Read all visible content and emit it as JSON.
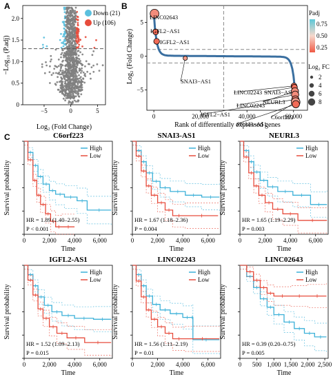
{
  "figure": {
    "panel_a": "A",
    "panel_b": "B",
    "panel_c": "C"
  },
  "colors": {
    "down": "#5bc0de",
    "up": "#e74c3c",
    "ns": "#808080",
    "high": "#3bb0d8",
    "low": "#e74c3c"
  },
  "chart_data": [
    {
      "id": "volcano",
      "type": "scatter",
      "title": "",
      "xlabel": "Log₂ (Fold Change)",
      "ylabel": "−Log₁₀ (P.adj)",
      "xlim": [
        -9,
        6.5
      ],
      "ylim": [
        0,
        2.3
      ],
      "xticks": [
        -5,
        0,
        5
      ],
      "xtick_labels": [
        "−5",
        "0",
        "5"
      ],
      "yticks": [
        0,
        0.5,
        1.0,
        1.5,
        2.0
      ],
      "ytick_labels": [
        "0",
        "0.5",
        "1.0",
        "1.5",
        "2.0"
      ],
      "thresholds": {
        "padj_line": 1.3,
        "fc_lines": [
          -1,
          1
        ]
      },
      "legend": [
        {
          "label": "Down (21)",
          "color": "down"
        },
        {
          "label": "Up (106)",
          "color": "up"
        }
      ],
      "grid": false
    },
    {
      "id": "rank",
      "type": "scatter",
      "title": "",
      "xlabel": "Rank of differentially expressed genes",
      "ylabel": "Log₂ (Fold Change)",
      "xlim": [
        -3000,
        66000
      ],
      "ylim": [
        -8,
        7.5
      ],
      "xticks": [
        0,
        20000,
        40000,
        60000
      ],
      "xtick_labels": [
        "0",
        "20,000",
        "40,000",
        "60,000"
      ],
      "yticks": [
        -5,
        0,
        5
      ],
      "ytick_labels": [
        "−5",
        "0",
        "5"
      ],
      "hlines": [
        1,
        -1
      ],
      "vline": 30000,
      "labeled_genes": [
        {
          "gene": "LINC02643",
          "rank": 300,
          "log2fc": 6.3,
          "padj": 0.15,
          "size": 8
        },
        {
          "gene": "IGFL2−AS1",
          "rank": 800,
          "log2fc": 3.6,
          "padj": 0.05,
          "size": 4
        },
        {
          "gene": "IGFL2−AS1",
          "rank": 1200,
          "log2fc": 2.2,
          "padj": 0.05,
          "size": 4
        },
        {
          "gene": "SNAI3−AS1",
          "rank": 13500,
          "log2fc": -0.3,
          "padj": 0.2,
          "size": 2
        },
        {
          "gene": "LINC02243",
          "rank": 60200,
          "log2fc": -4.4,
          "padj": 0.05,
          "size": 4
        },
        {
          "gene": "SNAI3−AS1",
          "rank": 60400,
          "log2fc": -4.6,
          "padj": 0.06,
          "size": 4
        },
        {
          "gene": "NEURL3",
          "rank": 60600,
          "log2fc": -5.2,
          "padj": 0.15,
          "size": 6
        },
        {
          "gene": "LINC02243",
          "rank": 60700,
          "log2fc": -5.7,
          "padj": 0.15,
          "size": 6
        },
        {
          "gene": "IGFL2−AS1",
          "rank": 60800,
          "log2fc": -6.4,
          "padj": 0.1,
          "size": 6
        },
        {
          "gene": "C6orf223",
          "rank": 60900,
          "log2fc": -6.8,
          "padj": 0.2,
          "size": 8
        },
        {
          "gene": "SNAI3−AS1",
          "rank": 61000,
          "log2fc": -7.1,
          "padj": 0.05,
          "size": 6
        }
      ],
      "colorbar": {
        "title": "Padj",
        "ticks": [
          0.75,
          0.5,
          0.25
        ],
        "tick_labels": [
          "0.75",
          "0.50",
          "0.25"
        ]
      },
      "size_legend": {
        "title": "Log₂ FC",
        "values": [
          2,
          4,
          6,
          8
        ],
        "labels": [
          "2",
          "4",
          "6",
          "8"
        ]
      },
      "grid": false
    },
    {
      "id": "km1",
      "type": "line",
      "title": "C6orf223",
      "xlabel": "Time",
      "ylabel": "Survival probability",
      "xlim": [
        0,
        7000
      ],
      "ylim": [
        0,
        1
      ],
      "xticks": [
        0,
        2000,
        4000,
        6000
      ],
      "xtick_labels": [
        "0",
        "2,000",
        "4,000",
        "6,000"
      ],
      "yticks": [
        0,
        0.25,
        0.5,
        0.75,
        1.0
      ],
      "ytick_labels": [
        "0.00",
        "0.25",
        "0.50",
        "0.75",
        "1.00"
      ],
      "series": [
        {
          "name": "High",
          "x": [
            0,
            300,
            700,
            1100,
            1500,
            2000,
            2500,
            3200,
            4200,
            5000,
            6900
          ],
          "y": [
            1,
            0.88,
            0.74,
            0.62,
            0.54,
            0.47,
            0.43,
            0.4,
            0.36,
            0.26,
            0.26
          ]
        },
        {
          "name": "Low",
          "x": [
            0,
            300,
            700,
            1000,
            1300,
            1700,
            2100,
            2500,
            3000,
            4000
          ],
          "y": [
            1,
            0.8,
            0.58,
            0.42,
            0.32,
            0.22,
            0.14,
            0.08,
            0.08,
            0.08
          ]
        }
      ],
      "hr": "HR = 1.89 (1.40–2.55)",
      "p": "P < 0.001"
    },
    {
      "id": "km2",
      "type": "line",
      "title": "SNAI3-AS1",
      "xlabel": "Time",
      "ylabel": "Survival probability",
      "xlim": [
        0,
        7000
      ],
      "ylim": [
        0,
        1
      ],
      "xticks": [
        0,
        2000,
        4000,
        6000
      ],
      "xtick_labels": [
        "0",
        "2,000",
        "4,000",
        "6,000"
      ],
      "yticks": [
        0,
        0.25,
        0.5,
        0.75,
        1.0
      ],
      "ytick_labels": [
        "0.00",
        "0.25",
        "0.50",
        "0.75",
        "1.00"
      ],
      "series": [
        {
          "name": "High",
          "x": [
            0,
            300,
            700,
            1100,
            1600,
            2200,
            3000,
            4200,
            5500,
            6900
          ],
          "y": [
            1,
            0.9,
            0.78,
            0.66,
            0.57,
            0.5,
            0.46,
            0.42,
            0.4,
            0.4
          ]
        },
        {
          "name": "Low",
          "x": [
            0,
            300,
            700,
            1100,
            1500,
            2000,
            2600,
            3200,
            4200,
            6800
          ],
          "y": [
            1,
            0.84,
            0.68,
            0.52,
            0.42,
            0.34,
            0.26,
            0.2,
            0.2,
            0.2
          ]
        }
      ],
      "hr": "HR = 1.67 (1.18–2.36)",
      "p": "P = 0.004"
    },
    {
      "id": "km3",
      "type": "line",
      "title": "NEURL3",
      "xlabel": "Time",
      "ylabel": "Survival probability",
      "xlim": [
        0,
        7000
      ],
      "ylim": [
        0,
        1
      ],
      "xticks": [
        0,
        2000,
        4000,
        6000
      ],
      "xtick_labels": [
        "0",
        "2,000",
        "4,000",
        "6,000"
      ],
      "yticks": [
        0,
        0.25,
        0.5,
        0.75,
        1.0
      ],
      "ytick_labels": [
        "0.00",
        "0.25",
        "0.50",
        "0.75",
        "1.00"
      ],
      "series": [
        {
          "name": "High",
          "x": [
            0,
            300,
            700,
            1100,
            1600,
            2200,
            3000,
            4200,
            5600,
            6900
          ],
          "y": [
            1,
            0.9,
            0.78,
            0.67,
            0.58,
            0.51,
            0.46,
            0.42,
            0.32,
            0.32
          ]
        },
        {
          "name": "Low",
          "x": [
            0,
            300,
            700,
            1100,
            1500,
            2000,
            2600,
            3400,
            4600,
            6900
          ],
          "y": [
            1,
            0.83,
            0.66,
            0.52,
            0.42,
            0.34,
            0.27,
            0.22,
            0.15,
            0.15
          ]
        }
      ],
      "hr": "HR = 1.65 (1.19–2.29)",
      "p": "P = 0.003"
    },
    {
      "id": "km4",
      "type": "line",
      "title": "IGFL2-AS1",
      "xlabel": "Time",
      "ylabel": "Survival probability",
      "xlim": [
        0,
        7000
      ],
      "ylim": [
        0,
        1
      ],
      "xticks": [
        0,
        2000,
        4000,
        6000
      ],
      "xtick_labels": [
        "0",
        "2,000",
        "4,000",
        "6,000"
      ],
      "yticks": [
        0,
        0.25,
        0.5,
        0.75,
        1.0
      ],
      "ytick_labels": [
        "0.00",
        "0.25",
        "0.50",
        "0.75",
        "1.00"
      ],
      "series": [
        {
          "name": "High",
          "x": [
            0,
            300,
            700,
            1100,
            1600,
            2200,
            3000,
            4000,
            5500,
            6900
          ],
          "y": [
            1,
            0.9,
            0.78,
            0.66,
            0.57,
            0.5,
            0.46,
            0.43,
            0.42,
            0.42
          ]
        },
        {
          "name": "Low",
          "x": [
            0,
            300,
            700,
            1100,
            1500,
            2000,
            2600,
            3400,
            4800,
            6900
          ],
          "y": [
            1,
            0.84,
            0.68,
            0.53,
            0.43,
            0.34,
            0.27,
            0.22,
            0.17,
            0.17
          ]
        }
      ],
      "hr": "HR = 1.52 (1.09–2.13)",
      "p": "P = 0.015"
    },
    {
      "id": "km5",
      "type": "line",
      "title": "LINC02243",
      "xlabel": "Time",
      "ylabel": "Survival probability",
      "xlim": [
        0,
        7000
      ],
      "ylim": [
        0,
        1
      ],
      "xticks": [
        0,
        2000,
        4000,
        6000
      ],
      "xtick_labels": [
        "0",
        "2,000",
        "4,000",
        "6,000"
      ],
      "yticks": [
        0,
        0.25,
        0.5,
        0.75,
        1.0
      ],
      "ytick_labels": [
        "0.00",
        "0.25",
        "0.50",
        "0.75",
        "1.00"
      ],
      "series": [
        {
          "name": "High",
          "x": [
            0,
            300,
            700,
            1100,
            1600,
            2200,
            3000,
            4000,
            4700,
            4800,
            6900
          ],
          "y": [
            1,
            0.9,
            0.78,
            0.67,
            0.58,
            0.52,
            0.48,
            0.44,
            0.44,
            0.2,
            0.2
          ]
        },
        {
          "name": "Low",
          "x": [
            0,
            300,
            700,
            1100,
            1500,
            2000,
            2600,
            3200,
            4200,
            6900
          ],
          "y": [
            1,
            0.83,
            0.66,
            0.52,
            0.42,
            0.34,
            0.27,
            0.21,
            0.21,
            0.21
          ]
        }
      ],
      "hr": "HR = 1.56 (1.11–2.19)",
      "p": "P = 0.01"
    },
    {
      "id": "km6",
      "type": "line",
      "title": "LINC02643",
      "xlabel": "Time",
      "ylabel": "Survival probability",
      "xlim": [
        0,
        2600
      ],
      "ylim": [
        0,
        1
      ],
      "xticks": [
        0,
        500,
        1000,
        1500,
        2000,
        2500
      ],
      "xtick_labels": [
        "0",
        "500",
        "1,000",
        "1,500",
        "2,000",
        "2,500"
      ],
      "yticks": [
        0,
        0.25,
        0.5,
        0.75,
        1.0
      ],
      "ytick_labels": [
        "0.00",
        "0.25",
        "0.50",
        "0.75",
        "1.00"
      ],
      "series": [
        {
          "name": "High",
          "x": [
            0,
            200,
            400,
            600,
            800,
            1000,
            1300,
            1600,
            1900,
            2200,
            2550
          ],
          "y": [
            1,
            0.88,
            0.76,
            0.64,
            0.55,
            0.47,
            0.39,
            0.32,
            0.27,
            0.23,
            0.23
          ]
        },
        {
          "name": "Low",
          "x": [
            0,
            200,
            400,
            600,
            800,
            1000,
            1500,
            2000,
            2550
          ],
          "y": [
            1,
            0.93,
            0.84,
            0.76,
            0.7,
            0.67,
            0.67,
            0.67,
            0.67
          ]
        }
      ],
      "hr": "HR = 0.39 (0.20–0.75)",
      "p": "P = 0.005"
    }
  ]
}
